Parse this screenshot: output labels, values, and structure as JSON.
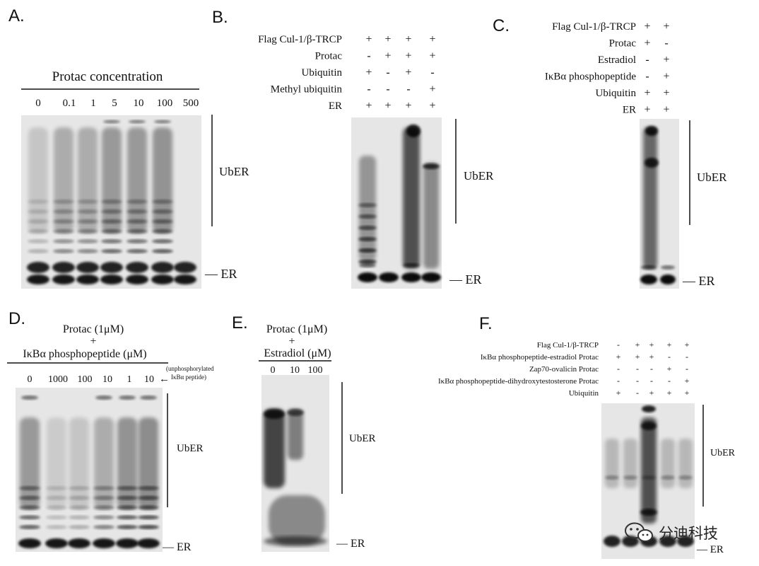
{
  "panels": {
    "A": {
      "label": "A.",
      "title": "Protac concentration",
      "lanes": [
        "0",
        "0.1",
        "1",
        "5",
        "10",
        "100",
        "500"
      ],
      "ub_label": "UbER",
      "er_label": "— ER"
    },
    "B": {
      "label": "B.",
      "conditions": [
        {
          "name": "Flag Cul-1/β-TRCP",
          "signs": [
            "+",
            "+",
            "+",
            "+"
          ]
        },
        {
          "name": "Protac",
          "signs": [
            "-",
            "+",
            "+",
            "+"
          ]
        },
        {
          "name": "Ubiquitin",
          "signs": [
            "+",
            "-",
            "+",
            "-"
          ]
        },
        {
          "name": "Methyl ubiquitin",
          "signs": [
            "-",
            "-",
            "-",
            "+"
          ]
        },
        {
          "name": "ER",
          "signs": [
            "+",
            "+",
            "+",
            "+"
          ]
        }
      ],
      "ub_label": "UbER",
      "er_label": "— ER"
    },
    "C": {
      "label": "C.",
      "conditions": [
        {
          "name": "Flag Cul-1/β-TRCP",
          "signs": [
            "+",
            "+"
          ]
        },
        {
          "name": "Protac",
          "signs": [
            "+",
            "-"
          ]
        },
        {
          "name": "Estradiol",
          "signs": [
            "-",
            "+"
          ]
        },
        {
          "name": "IκBα phosphopeptide",
          "signs": [
            "-",
            "+"
          ]
        },
        {
          "name": "Ubiquitin",
          "signs": [
            "+",
            "+"
          ]
        },
        {
          "name": "ER",
          "signs": [
            "+",
            "+"
          ]
        }
      ],
      "ub_label": "UbER",
      "er_label": "— ER"
    },
    "D": {
      "label": "D.",
      "title_line1": "Protac (1μM)",
      "title_plus": "+",
      "title_line2": "IκBα phosphopeptide (μM)",
      "lanes": [
        "0",
        "1000",
        "100",
        "10",
        "1",
        "10"
      ],
      "arrow": "←",
      "note_line1": "(unphosphorylated",
      "note_line2": "IκBα peptide)",
      "ub_label": "UbER",
      "er_label": "— ER"
    },
    "E": {
      "label": "E.",
      "title_line1": "Protac (1μM)",
      "title_plus": "+",
      "title_line2": "Estradiol (μM)",
      "lanes": [
        "0",
        "10",
        "100"
      ],
      "ub_label": "UbER",
      "er_label": "— ER"
    },
    "F": {
      "label": "F.",
      "conditions": [
        {
          "name": "Flag Cul-1/β-TRCP",
          "signs": [
            "-",
            "+",
            "+",
            "+",
            "+"
          ]
        },
        {
          "name": "IκBα phosphopeptide-estradiol Protac",
          "signs": [
            "+",
            "+",
            "+",
            "-",
            "-"
          ]
        },
        {
          "name": "Zap70-ovalicin Protac",
          "signs": [
            "-",
            "-",
            "-",
            "+",
            "-"
          ]
        },
        {
          "name": "IκBα phosphopeptide-dihydroxytestosterone Protac",
          "signs": [
            "-",
            "-",
            "-",
            "-",
            "+"
          ]
        },
        {
          "name": "Ubiquitin",
          "signs": [
            "+",
            "-",
            "+",
            "+",
            "+"
          ]
        }
      ],
      "ub_label": "UbER",
      "er_label": "— ER"
    }
  },
  "watermark": {
    "text": "分迪科技",
    "icon": "wechat-icon"
  }
}
